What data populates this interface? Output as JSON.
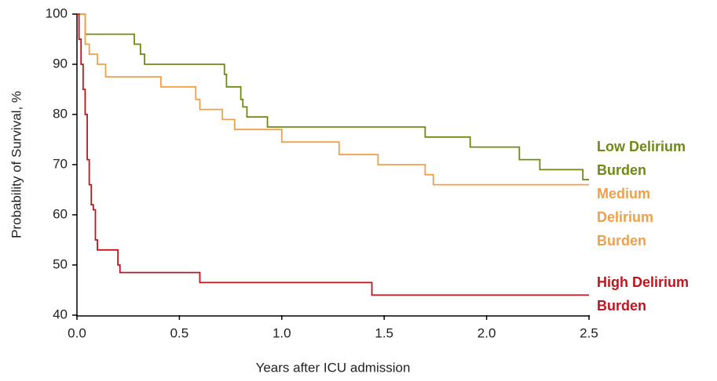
{
  "chart_data": {
    "type": "step",
    "x_label": "Years after ICU admission",
    "y_label": "Probability of Survival, %",
    "xlim": [
      0,
      2.5
    ],
    "xticks": [
      {
        "value": 0,
        "label": "0.0"
      },
      0.5,
      {
        "value": 1,
        "label": "1.0"
      },
      1.5,
      {
        "value": 2,
        "label": "2.0"
      },
      2.5
    ],
    "ylim": [
      40,
      100
    ],
    "yticks": [
      40,
      50,
      60,
      70,
      80,
      90,
      100
    ],
    "grid": false,
    "series": [
      {
        "name": "Low Delirium Burden",
        "color": "#6e8a12",
        "x": [
          0,
          0.04,
          0.28,
          0.31,
          0.33,
          0.72,
          0.73,
          0.8,
          0.81,
          0.83,
          0.93,
          1.7,
          1.92,
          2.16,
          2.26,
          2.47,
          2.5
        ],
        "values": [
          100,
          96,
          94,
          92,
          90,
          88,
          85.5,
          83,
          81.5,
          79.5,
          77.5,
          75.5,
          73.5,
          71,
          69,
          67,
          67
        ]
      },
      {
        "name": "Medium Delirium Burden",
        "color": "#f0a04b",
        "x": [
          0,
          0.04,
          0.06,
          0.1,
          0.14,
          0.41,
          0.58,
          0.6,
          0.71,
          0.77,
          1.0,
          1.28,
          1.47,
          1.7,
          1.74,
          2.5
        ],
        "values": [
          100,
          94,
          92,
          90,
          87.5,
          85.5,
          83,
          81,
          79,
          77,
          74.5,
          72,
          70,
          68,
          66,
          66
        ]
      },
      {
        "name": "High Delirium Burden",
        "color": "#c0141e",
        "x": [
          0,
          0.01,
          0.02,
          0.03,
          0.04,
          0.05,
          0.06,
          0.07,
          0.08,
          0.09,
          0.1,
          0.2,
          0.21,
          0.6,
          1.44,
          2.5
        ],
        "values": [
          100,
          95,
          90,
          85,
          80,
          71,
          66,
          62,
          61,
          55,
          53,
          50,
          48.5,
          46.5,
          44,
          44
        ]
      }
    ]
  }
}
